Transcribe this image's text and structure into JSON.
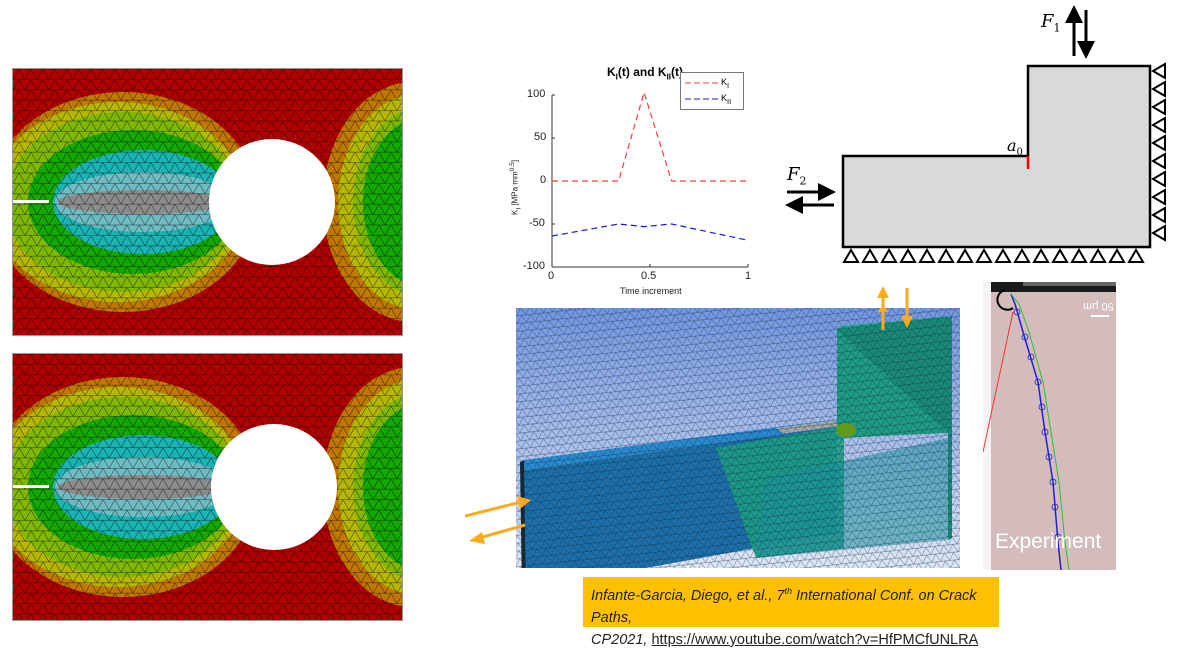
{
  "panels": {
    "fem_top": {
      "description": "FEM stress contour plate with hole and edge crack (top)"
    },
    "fem_bottom": {
      "description": "FEM stress contour plate with hole and edge crack (bottom)"
    },
    "contour_colors": [
      "#b00000",
      "#c07800",
      "#b5b800",
      "#7fb800",
      "#14a800",
      "#1ab4b4",
      "#70bcc4",
      "#8c8c8c"
    ]
  },
  "chart_data": {
    "type": "line",
    "title": "KI(t) and KII(t)",
    "title_parts": {
      "k1": "K",
      "k1_sub": "I",
      "mid": "(t) and ",
      "k2": "K",
      "k2_sub": "II",
      "end": "(t)"
    },
    "xlabel": "Time increment",
    "ylabel": "K_I [MPa mm^0.5]",
    "ylabel_parts": {
      "main": "K",
      "sub": "I",
      "rest": " [MPa mm",
      "sup": "0.5",
      "close": "]"
    },
    "xlim": [
      0,
      1
    ],
    "ylim": [
      -100,
      100
    ],
    "xticks": [
      "0",
      "0.5",
      "1"
    ],
    "yticks": [
      "100",
      "50",
      "0",
      "-50",
      "-100"
    ],
    "legend_position": "upper right",
    "series": [
      {
        "name": "KI",
        "label_main": "K",
        "label_sub": "I",
        "color": "#ff3b3b",
        "style": "dashed",
        "x": [
          0,
          0.34,
          0.47,
          0.61,
          1.0
        ],
        "y": [
          0,
          0,
          103,
          0,
          0
        ]
      },
      {
        "name": "KII",
        "label_main": "K",
        "label_sub": "II",
        "color": "#1a1ad6",
        "style": "dashed",
        "x": [
          0,
          0.34,
          0.47,
          0.61,
          1.0
        ],
        "y": [
          -64,
          -50,
          -53,
          -50,
          -69
        ]
      }
    ]
  },
  "schematic": {
    "f1_label": "F",
    "f1_sub": "1",
    "f2_label": "F",
    "f2_sub": "2",
    "crack_label": "a",
    "crack_sub": "0",
    "body_fill": "#d9d9d9",
    "crack_color": "#ff0000",
    "bottom_supports": 16,
    "right_supports": 10
  },
  "model3d": {
    "arrow_color": "#ffaa1a",
    "colors": {
      "blue": "#1d6fa8",
      "teal": "#1f9c84",
      "gray": "#a8a8a8"
    }
  },
  "experiment": {
    "label": "Experiment",
    "scale_bar": "50 μm",
    "paths": {
      "red": "#ff3030",
      "blue": "#2020d0",
      "green": "#30c030"
    }
  },
  "citation": {
    "text_line1": "Infante-Garcia, Diego, et al., 7",
    "sup": "th",
    "text_line1_end": " International Conf. on Crack Paths,",
    "text_line2": "CP2021, ",
    "link": "https://www.youtube.com/watch?v=HfPMCfUNLRA",
    "bg_color": "#ffc000"
  }
}
